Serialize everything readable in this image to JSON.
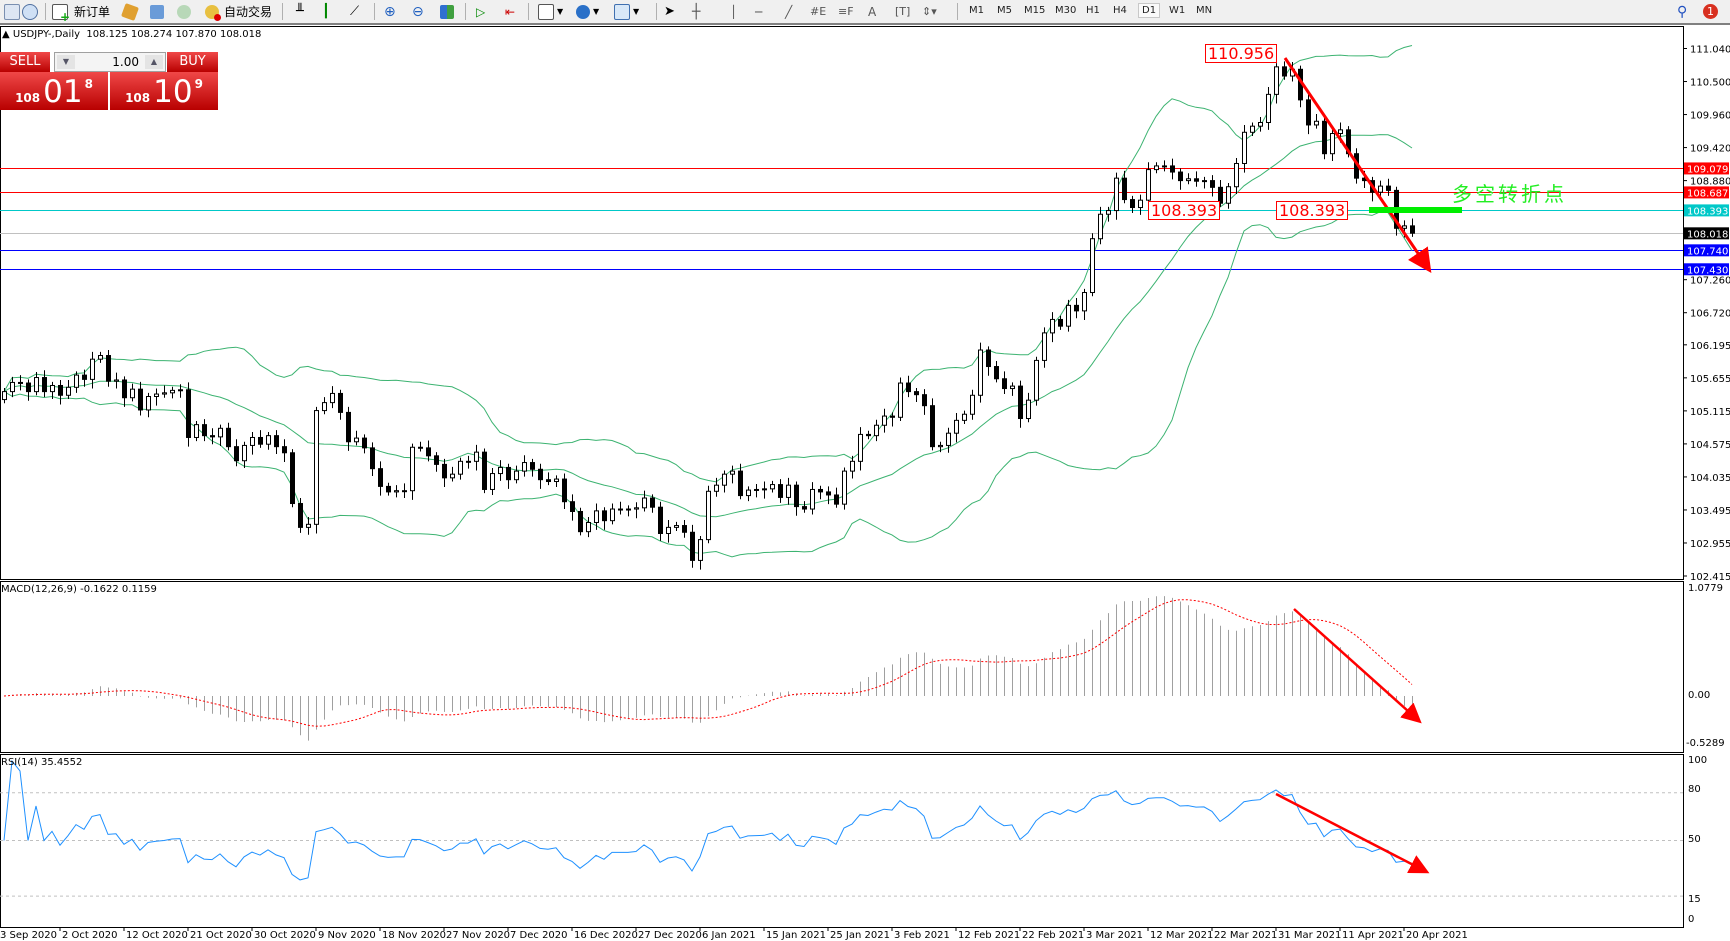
{
  "toolbar": {
    "new_order": "新订单",
    "auto_trading": "自动交易",
    "timeframes": [
      "M1",
      "M5",
      "M15",
      "M30",
      "H1",
      "H4",
      "D1",
      "W1",
      "MN"
    ],
    "active_timeframe": "D1",
    "notification_count": "1"
  },
  "chart_info": {
    "symbol": "USDJPY-,Daily",
    "ohlc": "108.125 108.274 107.870 108.018"
  },
  "trade_panel": {
    "sell_label": "SELL",
    "buy_label": "BUY",
    "lot": "1.00",
    "sell_price": {
      "big": "108",
      "main": "01",
      "pip": "8"
    },
    "buy_price": {
      "big": "108",
      "main": "10",
      "pip": "9"
    }
  },
  "chart_data": {
    "type": "candlestick",
    "symbol": "USDJPY-",
    "timeframe": "Daily",
    "closes": [
      105.43,
      105.58,
      105.57,
      105.43,
      105.66,
      105.43,
      105.53,
      105.37,
      105.5,
      105.7,
      105.63,
      105.96,
      106.02,
      105.6,
      105.62,
      105.33,
      105.47,
      105.13,
      105.35,
      105.39,
      105.41,
      105.45,
      105.46,
      104.68,
      104.89,
      104.71,
      104.69,
      104.83,
      104.53,
      104.3,
      104.55,
      104.68,
      104.57,
      104.71,
      104.53,
      104.43,
      103.6,
      103.21,
      103.26,
      105.12,
      105.25,
      105.4,
      105.09,
      104.61,
      104.67,
      104.51,
      104.17,
      103.88,
      103.79,
      103.81,
      103.81,
      104.52,
      104.51,
      104.38,
      104.24,
      104.02,
      104.08,
      104.29,
      104.29,
      104.44,
      103.83,
      104.09,
      104.19,
      103.99,
      104.13,
      104.27,
      104.16,
      103.99,
      103.96,
      104.0,
      103.63,
      103.47,
      103.14,
      103.29,
      103.48,
      103.32,
      103.51,
      103.51,
      103.51,
      103.53,
      103.69,
      103.54,
      103.11,
      103.21,
      103.24,
      103.13,
      102.67,
      103.01,
      103.8,
      103.9,
      104.08,
      104.13,
      103.73,
      103.82,
      103.83,
      103.84,
      103.91,
      103.7,
      103.9,
      103.55,
      103.51,
      103.83,
      103.79,
      103.74,
      103.59,
      104.13,
      104.29,
      104.73,
      104.71,
      104.88,
      105.03,
      105.01,
      105.57,
      105.43,
      105.38,
      105.2,
      104.53,
      104.55,
      104.75,
      104.96,
      105.06,
      105.37,
      106.11,
      105.84,
      105.64,
      105.48,
      105.52,
      104.99,
      105.29,
      105.94,
      106.39,
      106.61,
      106.5,
      106.84,
      106.75,
      107.05,
      107.93,
      108.33,
      108.39,
      108.92,
      108.57,
      108.44,
      108.56,
      109.06,
      109.12,
      109.12,
      109.02,
      108.88,
      108.91,
      108.87,
      108.88,
      108.77,
      108.51,
      108.78,
      109.16,
      109.67,
      109.77,
      109.83,
      110.29,
      110.74,
      110.59,
      110.7,
      110.2,
      109.79,
      109.85,
      109.32,
      109.65,
      109.71,
      109.32,
      108.92,
      108.88,
      108.69,
      108.79,
      108.72,
      108.1,
      108.14,
      108.02
    ],
    "x_labels": [
      "3 Sep 2020",
      "2 Oct 2020",
      "12 Oct 2020",
      "21 Oct 2020",
      "30 Oct 2020",
      "9 Nov 2020",
      "18 Nov 2020",
      "27 Nov 2020",
      "7 Dec 2020",
      "16 Dec 2020",
      "27 Dec 2020",
      "6 Jan 2021",
      "15 Jan 2021",
      "25 Jan 2021",
      "3 Feb 2021",
      "12 Feb 2021",
      "22 Feb 2021",
      "3 Mar 2021",
      "12 Mar 2021",
      "22 Mar 2021",
      "31 Mar 2021",
      "11 Apr 2021",
      "20 Apr 2021"
    ],
    "y_ticks": [
      "111.040",
      "110.500",
      "109.960",
      "109.420",
      "108.880",
      "107.260",
      "106.720",
      "106.195",
      "105.655",
      "105.115",
      "104.575",
      "104.035",
      "103.495",
      "102.955",
      "102.415"
    ],
    "ylim": [
      102.415,
      111.04
    ],
    "levels": [
      {
        "price": "109.079",
        "color": "#ff0000"
      },
      {
        "price": "108.687",
        "color": "#ff0000"
      },
      {
        "price": "108.393",
        "color": "#00c8c8"
      },
      {
        "price": "108.018",
        "color": "#000000",
        "line_color": "#c0c0c0"
      },
      {
        "price": "107.740",
        "color": "#0000ff"
      },
      {
        "price": "107.430",
        "color": "#0000ff"
      }
    ],
    "annotations": {
      "peak_label": "110.956",
      "support_label_1": "108.393",
      "support_label_2": "108.393",
      "note": "多空转折点"
    },
    "bollinger_color": "#3cb371",
    "macd": {
      "label": "MACD(12,26,9) -0.1622 0.1159",
      "ticks": [
        "1.0779",
        "0.00",
        "-0.5289"
      ],
      "ylim": [
        -0.5289,
        1.0779
      ],
      "histogram_color": "#a0a0a0",
      "signal_color": "#ff0000"
    },
    "rsi": {
      "label": "RSI(14) 35.4552",
      "ticks": [
        "100",
        "80",
        "50",
        "15",
        "0"
      ],
      "levels": [
        80,
        50,
        15
      ],
      "line_color": "#1e90ff"
    }
  }
}
